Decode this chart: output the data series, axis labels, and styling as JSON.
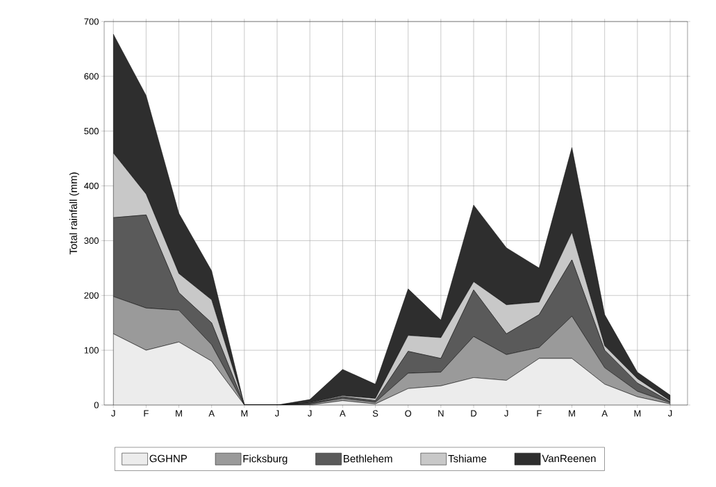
{
  "chart_data": {
    "type": "area",
    "stacked": true,
    "ylabel": "Total rainfall (mm)",
    "categories": [
      "J",
      "F",
      "M",
      "A",
      "M",
      "J",
      "J",
      "A",
      "S",
      "O",
      "N",
      "D",
      "J",
      "F",
      "M",
      "A",
      "M",
      "J"
    ],
    "series": [
      {
        "name": "GGHNP",
        "color": "#ececec",
        "values": [
          130,
          100,
          115,
          80,
          0,
          0,
          0,
          8,
          2,
          30,
          35,
          50,
          45,
          85,
          85,
          38,
          15,
          2
        ]
      },
      {
        "name": "Ficksburg",
        "color": "#9a9a9a",
        "values": [
          68,
          77,
          58,
          30,
          0,
          0,
          2,
          4,
          3,
          28,
          25,
          75,
          47,
          20,
          77,
          30,
          10,
          2
        ]
      },
      {
        "name": "Bethlehem",
        "color": "#5a5a5a",
        "values": [
          144,
          170,
          32,
          40,
          0,
          0,
          1,
          3,
          3,
          40,
          25,
          85,
          38,
          60,
          103,
          32,
          15,
          2
        ]
      },
      {
        "name": "Tshiame",
        "color": "#c8c8c8",
        "values": [
          118,
          38,
          35,
          42,
          0,
          0,
          1,
          2,
          4,
          29,
          38,
          15,
          53,
          23,
          50,
          8,
          8,
          2
        ]
      },
      {
        "name": "VanReenen",
        "color": "#2e2e2e",
        "values": [
          217,
          180,
          110,
          53,
          0,
          0,
          6,
          48,
          26,
          85,
          32,
          140,
          104,
          62,
          155,
          57,
          12,
          10
        ]
      }
    ],
    "ylim": [
      0,
      700
    ],
    "yticks": [
      0,
      100,
      200,
      300,
      400,
      500,
      600,
      700
    ],
    "grid": true,
    "legend": "bottom"
  }
}
